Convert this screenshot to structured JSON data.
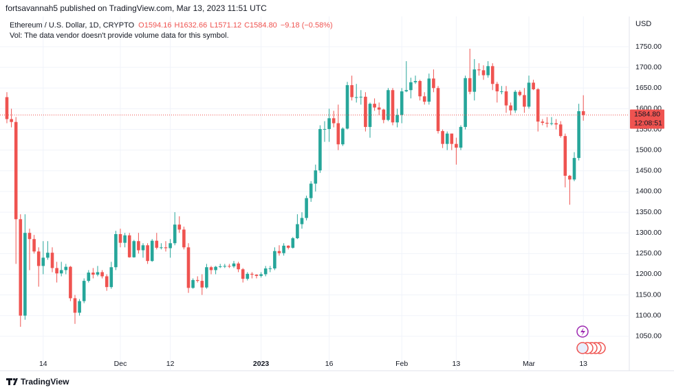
{
  "header": {
    "published": "fortsavannah5 published on TradingView.com, Mar 13, 2023 11:51 UTC"
  },
  "footer": {
    "brand": "TradingView"
  },
  "chart_data": {
    "type": "candlestick",
    "symbol": "Ethereum / U.S. Dollar, 1D, CRYPTO",
    "legend_values": [
      "O1594.16",
      "H1632.66",
      "L1571.12",
      "C1584.80",
      "−9.18 (−0.58%)"
    ],
    "volume_note": "Vol: The data vendor doesn't provide volume data for this symbol.",
    "currency": "USD",
    "last_price_label": "1584.80",
    "countdown": "12:08:51",
    "up_color": "#26a69a",
    "down_color": "#ef5350",
    "grid": true,
    "categories": [
      null,
      null,
      null,
      null,
      null,
      null,
      null,
      null,
      "14",
      null,
      null,
      null,
      null,
      null,
      null,
      null,
      null,
      null,
      null,
      null,
      null,
      null,
      null,
      null,
      null,
      "Dec",
      null,
      null,
      null,
      null,
      null,
      null,
      null,
      null,
      null,
      null,
      "12",
      null,
      null,
      null,
      null,
      null,
      null,
      null,
      null,
      null,
      null,
      null,
      null,
      null,
      null,
      null,
      null,
      null,
      null,
      null,
      "2023",
      null,
      null,
      null,
      null,
      null,
      null,
      null,
      null,
      null,
      null,
      null,
      null,
      null,
      null,
      "16",
      null,
      null,
      null,
      null,
      null,
      null,
      null,
      null,
      null,
      null,
      null,
      null,
      null,
      null,
      null,
      "Feb",
      null,
      null,
      null,
      null,
      null,
      null,
      null,
      null,
      null,
      null,
      null,
      "13",
      null,
      null,
      null,
      null,
      null,
      null,
      null,
      null,
      null,
      null,
      null,
      null,
      null,
      null,
      null,
      "Mar",
      null,
      null,
      null,
      null,
      null,
      null,
      null,
      null,
      null,
      null,
      null,
      "13"
    ],
    "open": [
      1628,
      1575,
      1568,
      1333,
      1100,
      1300,
      1285,
      1255,
      1220,
      1240,
      1252,
      1215,
      1202,
      1210,
      1218,
      1142,
      1107,
      1135,
      1184,
      1204,
      1199,
      1205,
      1195,
      1169,
      1217,
      1297,
      1276,
      1294,
      1241,
      1280,
      1258,
      1270,
      1232,
      1281,
      1264,
      1265,
      1263,
      1275,
      1320,
      1308,
      1265,
      1167,
      1186,
      1184,
      1168,
      1217,
      1210,
      1218,
      1219,
      1220,
      1219,
      1226,
      1212,
      1189,
      1201,
      1199,
      1196,
      1200,
      1214,
      1214,
      1256,
      1251,
      1269,
      1264,
      1287,
      1321,
      1336,
      1384,
      1419,
      1451,
      1551,
      1551,
      1577,
      1565,
      1514,
      1552,
      1657,
      1628,
      1628,
      1629,
      1556,
      1612,
      1603,
      1598,
      1573,
      1645,
      1567,
      1585,
      1642,
      1645,
      1664,
      1667,
      1630,
      1617,
      1673,
      1650,
      1546,
      1515,
      1540,
      1515,
      1506,
      1556,
      1674,
      1641,
      1695,
      1693,
      1681,
      1703,
      1660,
      1642,
      1642,
      1608,
      1596,
      1641,
      1633,
      1605,
      1663,
      1647,
      1569,
      1566,
      1564,
      1565,
      1562,
      1534,
      1438,
      1429,
      1481,
      1594.16
    ],
    "high": [
      1640,
      1600,
      1580,
      1345,
      1345,
      1310,
      1295,
      1265,
      1280,
      1280,
      1265,
      1230,
      1230,
      1225,
      1220,
      1150,
      1140,
      1190,
      1210,
      1215,
      1220,
      1210,
      1200,
      1230,
      1305,
      1310,
      1300,
      1300,
      1283,
      1300,
      1275,
      1275,
      1285,
      1300,
      1275,
      1280,
      1285,
      1350,
      1340,
      1315,
      1275,
      1190,
      1195,
      1200,
      1225,
      1220,
      1220,
      1225,
      1225,
      1225,
      1232,
      1230,
      1215,
      1205,
      1205,
      1200,
      1205,
      1220,
      1220,
      1265,
      1270,
      1275,
      1270,
      1290,
      1345,
      1350,
      1390,
      1425,
      1465,
      1560,
      1570,
      1600,
      1595,
      1610,
      1555,
      1665,
      1680,
      1660,
      1645,
      1640,
      1615,
      1625,
      1615,
      1600,
      1650,
      1650,
      1600,
      1650,
      1715,
      1675,
      1680,
      1670,
      1640,
      1685,
      1695,
      1655,
      1550,
      1545,
      1540,
      1530,
      1560,
      1680,
      1745,
      1720,
      1710,
      1705,
      1715,
      1710,
      1665,
      1655,
      1655,
      1615,
      1645,
      1645,
      1650,
      1680,
      1670,
      1650,
      1575,
      1580,
      1580,
      1575,
      1570,
      1540,
      1440,
      1495,
      1612,
      1632.66
    ],
    "low": [
      1565,
      1555,
      1225,
      1073,
      1090,
      1210,
      1250,
      1170,
      1200,
      1235,
      1205,
      1180,
      1195,
      1200,
      1135,
      1080,
      1100,
      1130,
      1180,
      1190,
      1195,
      1190,
      1160,
      1165,
      1210,
      1265,
      1265,
      1240,
      1240,
      1250,
      1240,
      1225,
      1230,
      1260,
      1260,
      1255,
      1240,
      1270,
      1300,
      1260,
      1155,
      1165,
      1180,
      1150,
      1165,
      1200,
      1200,
      1215,
      1215,
      1215,
      1215,
      1205,
      1180,
      1185,
      1190,
      1190,
      1192,
      1195,
      1205,
      1210,
      1245,
      1245,
      1260,
      1262,
      1285,
      1310,
      1330,
      1375,
      1400,
      1445,
      1520,
      1520,
      1555,
      1500,
      1510,
      1550,
      1620,
      1615,
      1610,
      1545,
      1530,
      1595,
      1585,
      1565,
      1570,
      1560,
      1555,
      1565,
      1640,
      1625,
      1660,
      1620,
      1610,
      1610,
      1640,
      1540,
      1505,
      1500,
      1500,
      1465,
      1500,
      1550,
      1635,
      1620,
      1680,
      1670,
      1675,
      1645,
      1615,
      1635,
      1590,
      1585,
      1590,
      1630,
      1590,
      1600,
      1645,
      1545,
      1560,
      1555,
      1560,
      1550,
      1530,
      1410,
      1368,
      1425,
      1475,
      1571.12
    ],
    "close": [
      1575,
      1568,
      1333,
      1100,
      1300,
      1285,
      1255,
      1220,
      1240,
      1252,
      1215,
      1202,
      1210,
      1218,
      1142,
      1107,
      1135,
      1184,
      1204,
      1199,
      1205,
      1195,
      1169,
      1217,
      1297,
      1276,
      1294,
      1241,
      1280,
      1258,
      1270,
      1232,
      1281,
      1264,
      1265,
      1263,
      1275,
      1320,
      1308,
      1265,
      1167,
      1186,
      1184,
      1168,
      1217,
      1210,
      1218,
      1219,
      1220,
      1219,
      1226,
      1212,
      1189,
      1201,
      1199,
      1196,
      1200,
      1214,
      1214,
      1256,
      1251,
      1269,
      1264,
      1287,
      1321,
      1336,
      1384,
      1419,
      1451,
      1551,
      1551,
      1577,
      1565,
      1514,
      1552,
      1657,
      1628,
      1628,
      1629,
      1556,
      1612,
      1603,
      1598,
      1573,
      1645,
      1567,
      1585,
      1642,
      1645,
      1664,
      1667,
      1630,
      1617,
      1673,
      1650,
      1546,
      1515,
      1540,
      1515,
      1506,
      1556,
      1674,
      1641,
      1695,
      1693,
      1681,
      1703,
      1660,
      1642,
      1642,
      1608,
      1596,
      1641,
      1633,
      1605,
      1663,
      1647,
      1569,
      1566,
      1564,
      1565,
      1562,
      1534,
      1438,
      1429,
      1481,
      1594.16,
      1584.8
    ],
    "ylim": [
      1000,
      1823
    ],
    "yticks": [
      {
        "value": 1050,
        "label": "1050.00"
      },
      {
        "value": 1100,
        "label": "1100.00"
      },
      {
        "value": 1150,
        "label": "1150.00"
      },
      {
        "value": 1200,
        "label": "1200.00"
      },
      {
        "value": 1250,
        "label": "1250.00"
      },
      {
        "value": 1300,
        "label": "1300.00"
      },
      {
        "value": 1350,
        "label": "1350.00"
      },
      {
        "value": 1400,
        "label": "1400.00"
      },
      {
        "value": 1450,
        "label": "1450.00"
      },
      {
        "value": 1500,
        "label": "1500.00"
      },
      {
        "value": 1550,
        "label": "1550.00"
      },
      {
        "value": 1600,
        "label": "1600.00"
      },
      {
        "value": 1650,
        "label": "1650.00"
      },
      {
        "value": 1700,
        "label": "1700.00"
      },
      {
        "value": 1750,
        "label": "1750.00"
      }
    ]
  }
}
